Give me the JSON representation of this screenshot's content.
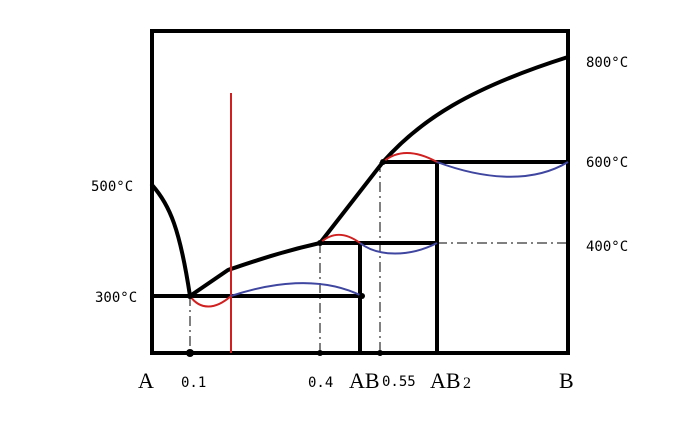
{
  "diagram": {
    "temperature_labels": {
      "t800": "800°C",
      "t600": "600°C",
      "t400": "400°C",
      "t500": "500°C",
      "t300": "300°C"
    },
    "composition_labels": {
      "a": "A",
      "x01": "0.1",
      "x04": "0.4",
      "ab": "AB",
      "x055": "0.55",
      "ab2": "AB",
      "ab2_sub": "2",
      "b": "B"
    },
    "colors": {
      "line": "#000000",
      "accent_red": "#d02020",
      "accent_blue": "#3f46a0",
      "background": "#ffffff"
    }
  }
}
